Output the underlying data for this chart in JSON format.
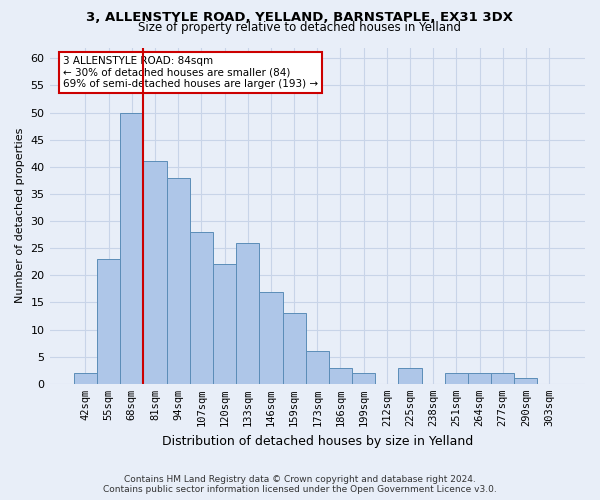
{
  "title": "3, ALLENSTYLE ROAD, YELLAND, BARNSTAPLE, EX31 3DX",
  "subtitle": "Size of property relative to detached houses in Yelland",
  "xlabel": "Distribution of detached houses by size in Yelland",
  "ylabel": "Number of detached properties",
  "footer_line1": "Contains HM Land Registry data © Crown copyright and database right 2024.",
  "footer_line2": "Contains public sector information licensed under the Open Government Licence v3.0.",
  "categories": [
    "42sqm",
    "55sqm",
    "68sqm",
    "81sqm",
    "94sqm",
    "107sqm",
    "120sqm",
    "133sqm",
    "146sqm",
    "159sqm",
    "173sqm",
    "186sqm",
    "199sqm",
    "212sqm",
    "225sqm",
    "238sqm",
    "251sqm",
    "264sqm",
    "277sqm",
    "290sqm",
    "303sqm"
  ],
  "bar_values": [
    2,
    23,
    50,
    41,
    38,
    28,
    22,
    26,
    17,
    13,
    6,
    3,
    2,
    0,
    3,
    0,
    2,
    2,
    2,
    1,
    0
  ],
  "bar_color": "#aec6e8",
  "bar_edge_color": "#5b8db8",
  "grid_color": "#c8d4e8",
  "background_color": "#e8eef8",
  "vline_x": 2.5,
  "vline_color": "#cc0000",
  "annotation_text": "3 ALLENSTYLE ROAD: 84sqm\n← 30% of detached houses are smaller (84)\n69% of semi-detached houses are larger (193) →",
  "annotation_box_color": "#ffffff",
  "annotation_box_edge": "#cc0000",
  "ylim": [
    0,
    62
  ],
  "yticks": [
    0,
    5,
    10,
    15,
    20,
    25,
    30,
    35,
    40,
    45,
    50,
    55,
    60
  ],
  "title_fontsize": 9.5,
  "subtitle_fontsize": 8.5,
  "ylabel_fontsize": 8,
  "xlabel_fontsize": 9,
  "tick_fontsize": 8,
  "xtick_fontsize": 7.5,
  "annotation_fontsize": 7.5,
  "footer_fontsize": 6.5
}
